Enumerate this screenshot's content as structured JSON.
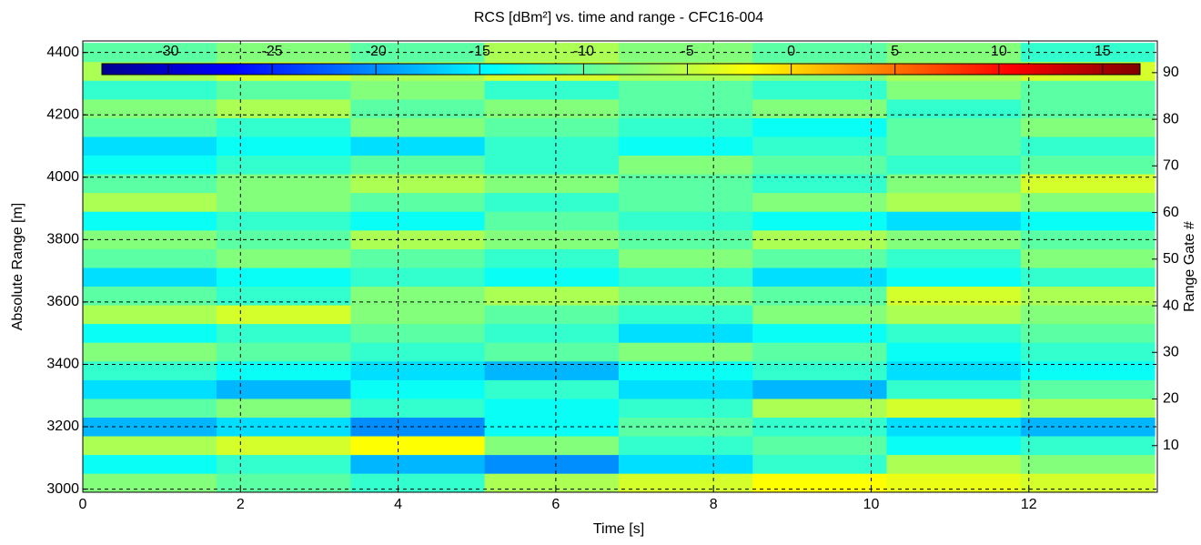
{
  "chart_data": {
    "type": "heatmap",
    "title": "RCS [dBm²] vs. time and range - CFC16-004",
    "x_label": "Time [s]",
    "y_label": "Absolute Range [m]",
    "y2_label": "Range Gate #",
    "x": [
      0.85,
      2.55,
      4.25,
      5.95,
      7.65,
      9.35,
      11.05,
      12.75
    ],
    "y": [
      3020,
      3080,
      3140,
      3200,
      3260,
      3320,
      3380,
      3440,
      3500,
      3560,
      3620,
      3680,
      3740,
      3800,
      3860,
      3920,
      3980,
      4040,
      4100,
      4160,
      4220,
      4280,
      4340,
      4400
    ],
    "values": [
      [
        -8,
        -10,
        -12,
        -6,
        -4,
        -2,
        -3,
        -4
      ],
      [
        -14,
        -12,
        -18,
        -20,
        -16,
        -12,
        -6,
        -8
      ],
      [
        -6,
        -4,
        -2,
        -8,
        -12,
        -10,
        -14,
        -12
      ],
      [
        -18,
        -16,
        -20,
        -14,
        -10,
        -12,
        -16,
        -18
      ],
      [
        -10,
        -8,
        -12,
        -14,
        -12,
        -6,
        -4,
        -6
      ],
      [
        -16,
        -18,
        -14,
        -12,
        -16,
        -18,
        -12,
        -10
      ],
      [
        -12,
        -14,
        -16,
        -18,
        -14,
        -12,
        -16,
        -14
      ],
      [
        -8,
        -10,
        -12,
        -10,
        -8,
        -10,
        -14,
        -12
      ],
      [
        -14,
        -12,
        -10,
        -12,
        -16,
        -14,
        -12,
        -10
      ],
      [
        -6,
        -4,
        -8,
        -10,
        -12,
        -8,
        -6,
        -8
      ],
      [
        -10,
        -12,
        -8,
        -6,
        -8,
        -10,
        -4,
        -6
      ],
      [
        -16,
        -14,
        -12,
        -14,
        -12,
        -16,
        -14,
        -12
      ],
      [
        -10,
        -8,
        -10,
        -12,
        -8,
        -10,
        -12,
        -8
      ],
      [
        -8,
        -10,
        -6,
        -8,
        -10,
        -6,
        -8,
        -10
      ],
      [
        -14,
        -12,
        -14,
        -10,
        -12,
        -14,
        -16,
        -14
      ],
      [
        -6,
        -8,
        -10,
        -12,
        -10,
        -8,
        -6,
        -8
      ],
      [
        -10,
        -8,
        -6,
        -8,
        -10,
        -12,
        -8,
        -4
      ],
      [
        -14,
        -12,
        -10,
        -12,
        -8,
        -10,
        -12,
        -10
      ],
      [
        -16,
        -14,
        -16,
        -12,
        -14,
        -12,
        -10,
        -12
      ],
      [
        -10,
        -12,
        -8,
        -10,
        -12,
        -14,
        -10,
        -8
      ],
      [
        -8,
        -6,
        -10,
        -8,
        -10,
        -8,
        -12,
        -10
      ],
      [
        -12,
        -10,
        -8,
        -12,
        -10,
        -12,
        -8,
        -10
      ],
      [
        -6,
        -4,
        -6,
        -4,
        -6,
        -8,
        -6,
        -4
      ],
      [
        -10,
        -8,
        -10,
        -6,
        -8,
        -10,
        -8,
        -12
      ]
    ],
    "xlim": [
      0,
      13.63
    ],
    "xticks": [
      0,
      2,
      4,
      6,
      8,
      10,
      12
    ],
    "ylim": [
      2990,
      4437
    ],
    "yticks": [
      3000,
      3200,
      3400,
      3600,
      3800,
      4000,
      4200,
      4400
    ],
    "y2lim": [
      0,
      96.8
    ],
    "y2ticks": [
      10,
      20,
      30,
      40,
      50,
      60,
      70,
      80,
      90
    ],
    "clim": [
      -33.2,
      16.8
    ],
    "cticks": [
      -30,
      -25,
      -20,
      -15,
      -10,
      -5,
      0,
      5,
      10,
      15
    ],
    "colormap": "jet",
    "grid": true
  }
}
